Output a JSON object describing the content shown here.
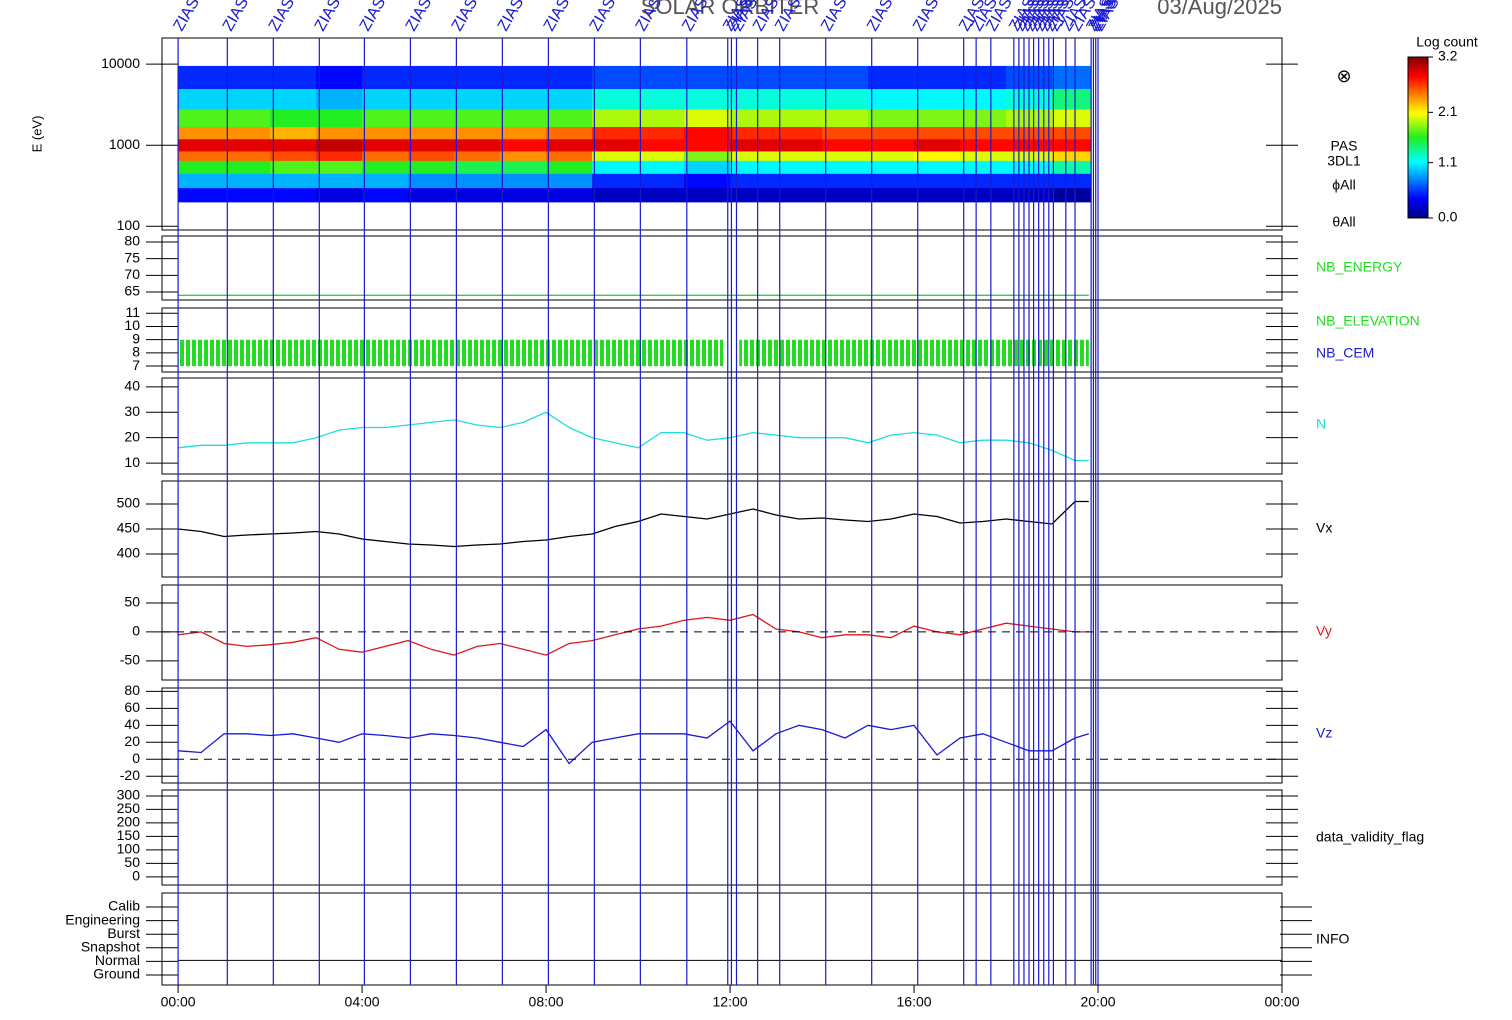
{
  "header": {
    "title": "SOLAR ORBITER",
    "date": "03/Aug/2025"
  },
  "time_axis": {
    "xlim": [
      -0.35,
      24
    ],
    "xticks": [
      {
        "value": 0,
        "label": "00:00"
      },
      {
        "value": 4,
        "label": "04:00"
      },
      {
        "value": 8,
        "label": "08:00"
      },
      {
        "value": 12,
        "label": "12:00"
      },
      {
        "value": 16,
        "label": "16:00"
      },
      {
        "value": 20,
        "label": "20:00"
      },
      {
        "value": 24,
        "label": "00:00"
      }
    ]
  },
  "events": {
    "label": "ZIAS",
    "color": "#1a1ad0",
    "x": [
      0,
      1.07,
      2.07,
      3.07,
      4.05,
      5.05,
      6.05,
      7.05,
      8.05,
      9.05,
      10.05,
      11.06,
      11.95,
      12.03,
      12.14,
      12.6,
      13.08,
      14.08,
      15.08,
      16.08,
      17.08,
      17.35,
      17.67,
      18.17,
      18.28,
      18.39,
      18.5,
      18.6,
      18.71,
      18.82,
      18.93,
      19.03,
      19.3,
      19.5,
      19.85,
      19.9,
      19.95,
      20
    ]
  },
  "chart_data": [
    {
      "type": "heatmap",
      "ylabel": "E (eV)",
      "log": true,
      "ylim": [
        90,
        21000
      ],
      "yticks": [
        100,
        1000,
        10000
      ],
      "labels": [
        "PAS",
        "3DL1",
        "ϕAll",
        "θAll"
      ],
      "zlabel": "Log count",
      "zlim": [
        0,
        3.2
      ],
      "zticks": [
        {
          "value": 0,
          "label": "0.0"
        },
        1.1,
        2.1,
        3.2
      ],
      "xbins": [
        0,
        1,
        2,
        3,
        4,
        5,
        6,
        7,
        8,
        9,
        10,
        11,
        12,
        13,
        14,
        15,
        16,
        17,
        18,
        19,
        19.85
      ],
      "ybins": [
        200,
        300,
        450,
        650,
        850,
        1200,
        1700,
        2800,
        5000,
        9500
      ],
      "values": [
        [
          0.4,
          0.9,
          1.6,
          2.5,
          2.9,
          2.4,
          1.7,
          1.0,
          0.5
        ],
        [
          0.4,
          0.9,
          1.6,
          2.5,
          2.9,
          2.4,
          1.7,
          1.0,
          0.5
        ],
        [
          0.4,
          0.9,
          1.7,
          2.6,
          2.9,
          2.3,
          1.6,
          1.0,
          0.5
        ],
        [
          0.3,
          0.9,
          1.7,
          2.7,
          3.0,
          2.4,
          1.6,
          0.9,
          0.4
        ],
        [
          0.4,
          0.9,
          1.6,
          2.5,
          2.9,
          2.4,
          1.7,
          1.0,
          0.5
        ],
        [
          0.3,
          0.8,
          1.6,
          2.6,
          2.9,
          2.4,
          1.7,
          1.0,
          0.5
        ],
        [
          0.3,
          0.8,
          1.5,
          2.5,
          2.9,
          2.4,
          1.7,
          1.0,
          0.5
        ],
        [
          0.3,
          0.8,
          1.5,
          2.4,
          2.8,
          2.4,
          1.7,
          1.0,
          0.5
        ],
        [
          0.3,
          0.8,
          1.6,
          2.5,
          2.9,
          2.5,
          1.7,
          1.0,
          0.5
        ],
        [
          0.2,
          0.5,
          1.1,
          2.0,
          2.9,
          2.7,
          1.9,
          1.2,
          0.6
        ],
        [
          0.2,
          0.5,
          1.1,
          2.0,
          2.8,
          2.7,
          1.9,
          1.2,
          0.6
        ],
        [
          0.2,
          0.4,
          1.0,
          1.8,
          2.8,
          2.8,
          2.0,
          1.2,
          0.6
        ],
        [
          0.2,
          0.5,
          1.1,
          2.0,
          2.9,
          2.7,
          1.9,
          1.2,
          0.6
        ],
        [
          0.2,
          0.5,
          1.1,
          2.0,
          2.9,
          2.7,
          1.9,
          1.2,
          0.6
        ],
        [
          0.2,
          0.5,
          1.1,
          2.0,
          2.8,
          2.6,
          1.9,
          1.2,
          0.6
        ],
        [
          0.2,
          0.5,
          1.1,
          2.0,
          2.8,
          2.6,
          1.8,
          1.1,
          0.5
        ],
        [
          0.2,
          0.5,
          1.1,
          2.1,
          2.9,
          2.6,
          1.8,
          1.1,
          0.5
        ],
        [
          0.2,
          0.5,
          1.1,
          2.0,
          2.8,
          2.6,
          1.8,
          1.1,
          0.5
        ],
        [
          0.2,
          0.5,
          1.1,
          2.0,
          2.8,
          2.6,
          1.9,
          1.2,
          0.6
        ],
        [
          0.1,
          0.5,
          1.3,
          2.2,
          2.8,
          2.6,
          2.0,
          1.4,
          0.7
        ]
      ]
    },
    {
      "type": "line",
      "ylim": [
        62.6,
        81.8
      ],
      "yticks": [
        65,
        70,
        75,
        80
      ],
      "series": [
        {
          "name": "NB_ENERGY",
          "color": "#22dd22",
          "x": [
            0,
            19.8
          ],
          "values": [
            64,
            64
          ]
        }
      ]
    },
    {
      "type": "band",
      "ylim": [
        6.55,
        11.4
      ],
      "yticks": [
        7,
        8,
        9,
        10,
        11
      ],
      "series": [
        {
          "name": "NB_ELEVATION",
          "color": "#22dd22",
          "x": [
            0,
            11.85,
            12.05,
            12.2,
            19.8
          ],
          "low": [
            7,
            7,
            null,
            7,
            7
          ],
          "high": [
            9,
            9,
            null,
            9,
            9
          ]
        },
        {
          "name": "NB_CEM",
          "color": "#1a1ad0"
        }
      ]
    },
    {
      "type": "line",
      "ylim": [
        5.7,
        43.5
      ],
      "yticks": [
        10,
        20,
        30,
        40
      ],
      "series": [
        {
          "name": "N",
          "color": "#22dddd",
          "x": [
            0,
            0.5,
            1,
            1.5,
            2,
            2.5,
            3,
            3.5,
            4,
            4.5,
            5,
            5.5,
            6,
            6.5,
            7,
            7.5,
            8,
            8.5,
            9,
            9.5,
            10,
            10.5,
            11,
            11.5,
            12,
            12.5,
            13,
            13.5,
            14,
            14.5,
            15,
            15.5,
            16,
            16.5,
            17,
            17.5,
            18,
            18.5,
            19,
            19.5,
            19.8
          ],
          "values": [
            16,
            17,
            17,
            18,
            18,
            18,
            20,
            23,
            24,
            24,
            25,
            26,
            27,
            25,
            24,
            26,
            30,
            24,
            20,
            18,
            16,
            22,
            22,
            19,
            20,
            22,
            21,
            20,
            20,
            20,
            18,
            21,
            22,
            21,
            18,
            19,
            19,
            18,
            15,
            11,
            11
          ]
        }
      ]
    },
    {
      "type": "line",
      "ylim": [
        354,
        546
      ],
      "yticks": [
        400,
        450,
        500
      ],
      "series": [
        {
          "name": "Vx",
          "color": "#000000",
          "x": [
            0,
            0.5,
            1,
            1.5,
            2,
            2.5,
            3,
            3.5,
            4,
            4.5,
            5,
            5.5,
            6,
            6.5,
            7,
            7.5,
            8,
            8.5,
            9,
            9.5,
            10,
            10.5,
            11,
            11.5,
            12,
            12.5,
            13,
            13.5,
            14,
            14.5,
            15,
            15.5,
            16,
            16.5,
            17,
            17.5,
            18,
            18.5,
            19,
            19.5,
            19.8
          ],
          "values": [
            450,
            445,
            435,
            438,
            440,
            442,
            445,
            440,
            430,
            425,
            420,
            418,
            415,
            418,
            420,
            425,
            428,
            435,
            440,
            455,
            465,
            480,
            475,
            470,
            480,
            490,
            478,
            470,
            472,
            468,
            465,
            470,
            480,
            475,
            462,
            465,
            470,
            465,
            460,
            505,
            505
          ]
        }
      ]
    },
    {
      "type": "line",
      "ylim": [
        -83,
        81
      ],
      "yticks": [
        -50,
        0,
        50
      ],
      "zero_line": true,
      "series": [
        {
          "name": "Vy",
          "color": "#dd1a1a",
          "x": [
            0,
            0.5,
            1,
            1.5,
            2,
            2.5,
            3,
            3.5,
            4,
            4.5,
            5,
            5.5,
            6,
            6.5,
            7,
            7.5,
            8,
            8.5,
            9,
            9.5,
            10,
            10.5,
            11,
            11.5,
            12,
            12.5,
            13,
            13.5,
            14,
            14.5,
            15,
            15.5,
            16,
            16.5,
            17,
            17.5,
            18,
            18.5,
            19,
            19.5,
            19.8
          ],
          "values": [
            -5,
            0,
            -20,
            -25,
            -22,
            -18,
            -10,
            -30,
            -35,
            -25,
            -15,
            -30,
            -40,
            -25,
            -20,
            -30,
            -40,
            -20,
            -15,
            -5,
            5,
            10,
            20,
            25,
            20,
            30,
            5,
            0,
            -10,
            -5,
            -5,
            -10,
            10,
            0,
            -5,
            5,
            15,
            10,
            5,
            0,
            0
          ]
        }
      ]
    },
    {
      "type": "line",
      "ylim": [
        -28,
        84
      ],
      "yticks": [
        -20,
        0,
        20,
        40,
        60,
        80
      ],
      "zero_line": true,
      "series": [
        {
          "name": "Vz",
          "color": "#1a1ad0",
          "x": [
            0,
            0.5,
            1,
            1.5,
            2,
            2.5,
            3,
            3.5,
            4,
            4.5,
            5,
            5.5,
            6,
            6.5,
            7,
            7.5,
            8,
            8.5,
            9,
            9.5,
            10,
            10.5,
            11,
            11.5,
            12,
            12.5,
            13,
            13.5,
            14,
            14.5,
            15,
            15.5,
            16,
            16.5,
            17,
            17.5,
            18,
            18.5,
            19,
            19.5,
            19.8
          ],
          "values": [
            10,
            8,
            30,
            30,
            28,
            30,
            25,
            20,
            30,
            28,
            25,
            30,
            28,
            25,
            20,
            15,
            35,
            -5,
            20,
            25,
            30,
            30,
            30,
            25,
            45,
            10,
            30,
            40,
            35,
            25,
            40,
            35,
            40,
            5,
            25,
            30,
            20,
            10,
            10,
            25,
            30
          ]
        }
      ]
    },
    {
      "type": "empty",
      "label": "data_validity_flag",
      "ylim": [
        -30,
        322
      ],
      "yticks": [
        0,
        50,
        100,
        150,
        200,
        250,
        300
      ]
    },
    {
      "type": "mode",
      "label": "INFO",
      "categories": [
        "Calib",
        "Engineering",
        "Burst",
        "Snapshot",
        "Normal",
        "Ground"
      ],
      "active": "Normal",
      "x": [
        0,
        24
      ]
    }
  ]
}
